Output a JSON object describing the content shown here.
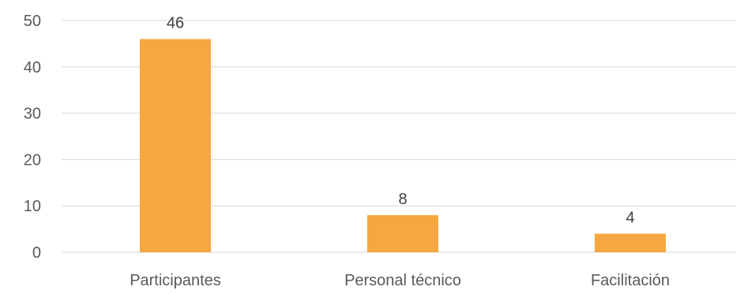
{
  "chart_data": {
    "type": "bar",
    "categories": [
      "Participantes",
      "Personal técnico",
      "Facilitación"
    ],
    "values": [
      46,
      8,
      4
    ],
    "data_labels": [
      "46",
      "8",
      "4"
    ],
    "title": "",
    "xlabel": "",
    "ylabel": "",
    "ylim": [
      0,
      50
    ],
    "yticks": [
      "0",
      "10",
      "20",
      "30",
      "40",
      "50"
    ],
    "grid": true,
    "legend": "none",
    "bar_color": "#F5A841"
  }
}
